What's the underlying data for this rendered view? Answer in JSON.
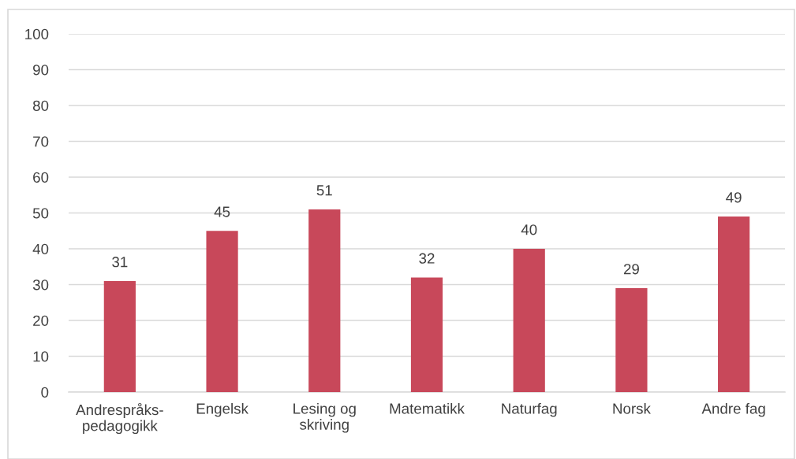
{
  "chart_data": {
    "type": "bar",
    "categories": [
      "Andrespråks-\npedagogikk",
      "Engelsk",
      "Lesing og\nskriving",
      "Matematikk",
      "Naturfag",
      "Norsk",
      "Andre fag"
    ],
    "values": [
      31,
      45,
      51,
      32,
      40,
      29,
      49
    ],
    "color": "#c8485a",
    "ylim": [
      0,
      100
    ],
    "yticks": [
      0,
      10,
      20,
      30,
      40,
      50,
      60,
      70,
      80,
      90,
      100
    ],
    "grid": "y",
    "data_labels": true
  }
}
